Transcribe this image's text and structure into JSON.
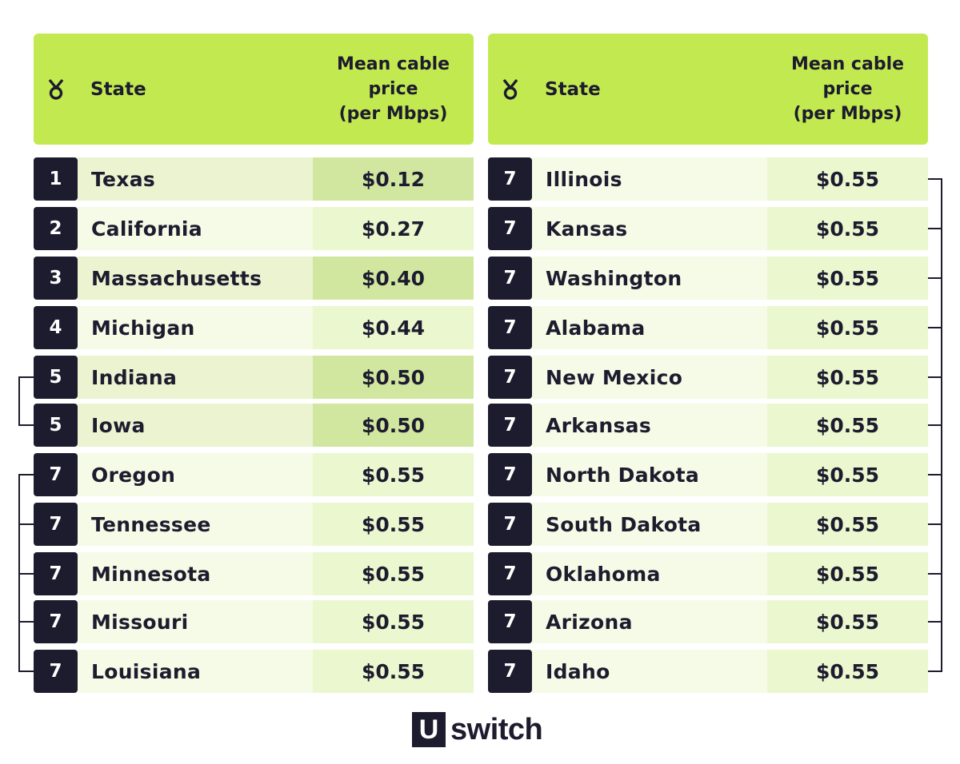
{
  "header": {
    "state_label": "State",
    "price_label_lines": [
      "Mean cable",
      "price",
      "(per Mbps)"
    ]
  },
  "left_table": [
    {
      "rank": "1",
      "state": "Texas",
      "price": "$0.12",
      "tone": "dark"
    },
    {
      "rank": "2",
      "state": "California",
      "price": "$0.27",
      "tone": "light"
    },
    {
      "rank": "3",
      "state": "Massachusetts",
      "price": "$0.40",
      "tone": "dark"
    },
    {
      "rank": "4",
      "state": "Michigan",
      "price": "$0.44",
      "tone": "light"
    },
    {
      "rank": "5",
      "state": "Indiana",
      "price": "$0.50",
      "tone": "dark"
    },
    {
      "rank": "5",
      "state": "Iowa",
      "price": "$0.50",
      "tone": "dark"
    },
    {
      "rank": "7",
      "state": "Oregon",
      "price": "$0.55",
      "tone": "light"
    },
    {
      "rank": "7",
      "state": "Tennessee",
      "price": "$0.55",
      "tone": "light"
    },
    {
      "rank": "7",
      "state": "Minnesota",
      "price": "$0.55",
      "tone": "light"
    },
    {
      "rank": "7",
      "state": "Missouri",
      "price": "$0.55",
      "tone": "light"
    },
    {
      "rank": "7",
      "state": "Louisiana",
      "price": "$0.55",
      "tone": "light"
    }
  ],
  "right_table": [
    {
      "rank": "7",
      "state": "Illinois",
      "price": "$0.55",
      "tone": "light"
    },
    {
      "rank": "7",
      "state": "Kansas",
      "price": "$0.55",
      "tone": "light"
    },
    {
      "rank": "7",
      "state": "Washington",
      "price": "$0.55",
      "tone": "light"
    },
    {
      "rank": "7",
      "state": "Alabama",
      "price": "$0.55",
      "tone": "light"
    },
    {
      "rank": "7",
      "state": "New Mexico",
      "price": "$0.55",
      "tone": "light"
    },
    {
      "rank": "7",
      "state": "Arkansas",
      "price": "$0.55",
      "tone": "light"
    },
    {
      "rank": "7",
      "state": "North Dakota",
      "price": "$0.55",
      "tone": "light"
    },
    {
      "rank": "7",
      "state": "South Dakota",
      "price": "$0.55",
      "tone": "light"
    },
    {
      "rank": "7",
      "state": "Oklahoma",
      "price": "$0.55",
      "tone": "light"
    },
    {
      "rank": "7",
      "state": "Arizona",
      "price": "$0.55",
      "tone": "light"
    },
    {
      "rank": "7",
      "state": "Idaho",
      "price": "$0.55",
      "tone": "light"
    }
  ],
  "logo": {
    "mark": "U",
    "text": "switch"
  },
  "colors": {
    "header_green": "#c2ea50",
    "rank_navy": "#1d1b2e"
  },
  "icons": {
    "header": "medal-icon"
  }
}
